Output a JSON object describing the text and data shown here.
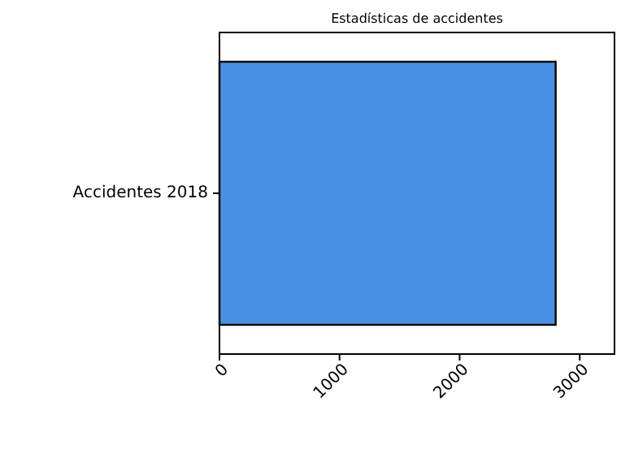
{
  "chart_data": {
    "type": "bar",
    "orientation": "horizontal",
    "title": "Estadísticas de accidentes",
    "categories": [
      "Accidentes 2018"
    ],
    "values": [
      2800
    ],
    "color": "#4a90e2",
    "xlim": [
      0,
      3290
    ],
    "xticks": [
      0,
      1000,
      2000,
      3000
    ],
    "grid": false
  }
}
